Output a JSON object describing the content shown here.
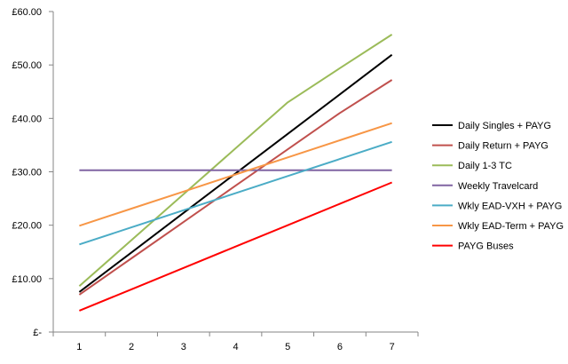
{
  "chart_data": {
    "type": "line",
    "title": "",
    "xlabel": "",
    "ylabel": "",
    "x": [
      1,
      2,
      3,
      4,
      5,
      6,
      7
    ],
    "ylim": [
      0,
      60
    ],
    "y_ticks": [
      0,
      10,
      20,
      30,
      40,
      50,
      60
    ],
    "y_tick_labels": [
      "£-",
      "£10.00",
      "£20.00",
      "£30.00",
      "£40.00",
      "£50.00",
      "£60.00"
    ],
    "x_tick_labels": [
      "1",
      "2",
      "3",
      "4",
      "5",
      "6",
      "7"
    ],
    "grid": false,
    "legend_position": "right",
    "series": [
      {
        "name": "Daily Singles + PAYG",
        "color": "#000000",
        "values": [
          7.5,
          14.9,
          22.3,
          29.7,
          37.1,
          44.5,
          51.9
        ]
      },
      {
        "name": "Daily Return + PAYG",
        "color": "#c0504d",
        "values": [
          7.0,
          13.8,
          20.6,
          27.4,
          34.2,
          41.0,
          47.2
        ]
      },
      {
        "name": "Daily 1-3 TC",
        "color": "#9bbb59",
        "values": [
          8.6,
          17.2,
          25.8,
          34.4,
          43.0,
          49.4,
          55.7
        ]
      },
      {
        "name": "Weekly Travelcard",
        "color": "#8064a2",
        "values": [
          30.3,
          30.3,
          30.3,
          30.3,
          30.3,
          30.3,
          30.3
        ]
      },
      {
        "name": "Wkly EAD-VXH + PAYG",
        "color": "#4bacc6",
        "values": [
          16.4,
          19.6,
          22.8,
          26.0,
          29.2,
          32.4,
          35.6
        ]
      },
      {
        "name": "Wkly EAD-Term + PAYG",
        "color": "#f79646",
        "values": [
          19.9,
          23.1,
          26.3,
          29.5,
          32.7,
          35.9,
          39.1
        ]
      },
      {
        "name": "PAYG Buses",
        "color": "#ff0000",
        "values": [
          4.0,
          8.0,
          12.0,
          16.0,
          20.0,
          24.0,
          28.0
        ]
      }
    ]
  }
}
